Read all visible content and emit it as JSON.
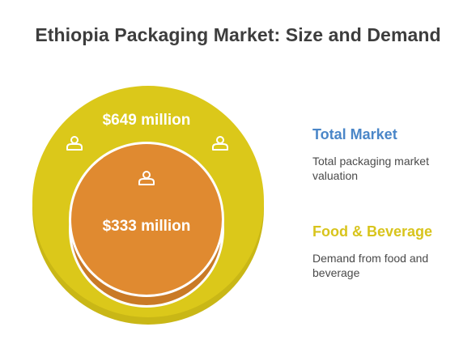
{
  "title": "Ethiopia Packaging Market: Size and Demand",
  "outer_circle": {
    "value_label": "$649 million",
    "color": "#dbc81a",
    "shadow_color": "#c2b113",
    "icon": "user-icon"
  },
  "inner_circle": {
    "value_label": "$333 million",
    "color": "#e08a30",
    "shadow_color": "#c77522",
    "icon": "user-icon"
  },
  "legend": [
    {
      "title": "Total Market",
      "description": "Total packaging market valuation",
      "color": "#4a86c8"
    },
    {
      "title": "Food & Beverage",
      "description": "Demand from food and beverage",
      "color": "#d8c41c"
    }
  ]
}
